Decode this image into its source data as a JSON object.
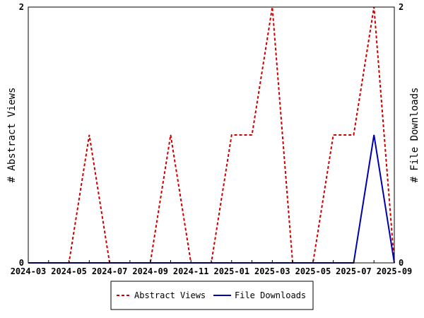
{
  "chart_data": {
    "type": "line",
    "x": [
      "2024-03",
      "2024-04",
      "2024-05",
      "2024-06",
      "2024-07",
      "2024-08",
      "2024-09",
      "2024-10",
      "2024-11",
      "2024-12",
      "2025-01",
      "2025-02",
      "2025-03",
      "2025-04",
      "2025-05",
      "2025-06",
      "2025-07",
      "2025-08",
      "2025-09"
    ],
    "xticklabels": [
      "2024-03",
      "2024-05",
      "2024-07",
      "2024-09",
      "2024-11",
      "2025-01",
      "2025-03",
      "2025-05",
      "2025-07",
      "2025-09"
    ],
    "series": [
      {
        "name": "Abstract Views",
        "axis": "left",
        "color": "#cc0000",
        "dash": true,
        "values": [
          0,
          0,
          0,
          1,
          0,
          0,
          0,
          1,
          0,
          0,
          1,
          1,
          2,
          0,
          0,
          1,
          1,
          2,
          0
        ]
      },
      {
        "name": "File Downloads",
        "axis": "right",
        "color": "#0000aa",
        "dash": false,
        "values": [
          0,
          0,
          0,
          0,
          0,
          0,
          0,
          0,
          0,
          0,
          0,
          0,
          0,
          0,
          0,
          0,
          0,
          1,
          0
        ]
      }
    ],
    "ylabel": "# Abstract Views",
    "y2label": "# File Downloads",
    "ylim": [
      0,
      2
    ],
    "y2lim": [
      0,
      2
    ],
    "yticks": [
      "0",
      "2"
    ],
    "y2ticks": [
      "0",
      "2"
    ],
    "legend": "bottom-center",
    "grid": false
  }
}
